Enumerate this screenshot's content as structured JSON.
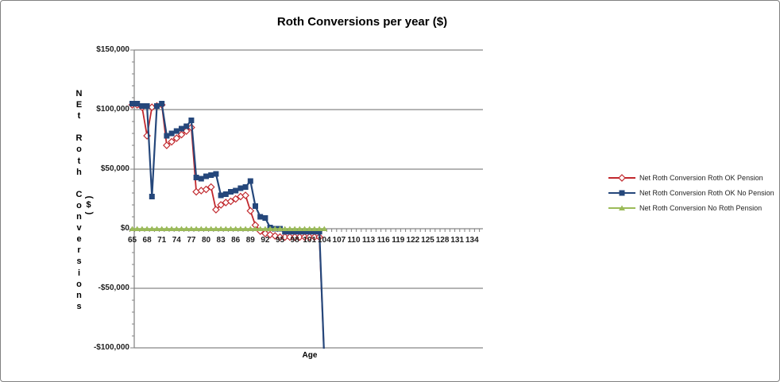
{
  "chart_data": {
    "type": "line",
    "title": "Roth Conversions per year ($)",
    "xlabel": "Age",
    "ylabel": "Net Roth Conversions ($)",
    "ylabel_stacked_text": "NEt Roth Conversions",
    "ylabel_unit": "($)",
    "legend_position": "right",
    "grid": "horizontal-only",
    "ylim": [
      -100000,
      150000
    ],
    "y_ticks": [
      {
        "value": 150000,
        "label": "$150,000"
      },
      {
        "value": 100000,
        "label": "$100,000"
      },
      {
        "value": 50000,
        "label": "$50,000"
      },
      {
        "value": 0,
        "label": "$0"
      },
      {
        "value": -50000,
        "label": "-$50,000"
      },
      {
        "value": -100000,
        "label": "-$100,000"
      }
    ],
    "x_tick_labels": [
      65,
      68,
      71,
      74,
      77,
      80,
      83,
      86,
      89,
      92,
      95,
      98,
      101,
      104,
      107,
      110,
      113,
      116,
      119,
      122,
      125,
      128,
      131,
      134
    ],
    "x_axis_extends_to": 136,
    "x": [
      65,
      66,
      67,
      68,
      69,
      70,
      71,
      72,
      73,
      74,
      75,
      76,
      77,
      78,
      79,
      80,
      81,
      82,
      83,
      84,
      85,
      86,
      87,
      88,
      89,
      90,
      91,
      92,
      93,
      94,
      95,
      96,
      97,
      98,
      99,
      100,
      101,
      102,
      103,
      104
    ],
    "series": [
      {
        "name": "Net Roth Conversion Roth OK Pension",
        "color": "#c1282d",
        "marker": "open-diamond",
        "values": [
          104000,
          104000,
          102000,
          78000,
          102000,
          103000,
          104000,
          70000,
          73000,
          76000,
          79000,
          82000,
          85000,
          31000,
          32000,
          33000,
          35000,
          16000,
          20000,
          22000,
          23000,
          25000,
          27000,
          28000,
          15000,
          3000,
          -2000,
          -4000,
          -5000,
          -6000,
          -7000,
          -7000,
          -7000,
          -7000,
          -7000,
          -7000,
          -7000,
          -7000,
          -7000,
          -110000
        ]
      },
      {
        "name": "Net Roth Conversion Roth OK No Pension",
        "color": "#25477b",
        "marker": "filled-square",
        "values": [
          105000,
          105000,
          103000,
          103000,
          27000,
          103000,
          105000,
          78000,
          80000,
          82000,
          84000,
          86000,
          91000,
          43000,
          42000,
          44000,
          45000,
          46000,
          28000,
          29000,
          31000,
          32000,
          34000,
          35000,
          40000,
          19000,
          10000,
          9000,
          1000,
          0,
          0,
          -2500,
          -2500,
          -2500,
          -2500,
          -2500,
          -2500,
          -2500,
          -2500,
          -110000
        ]
      },
      {
        "name": "Net Roth Conversion No Roth Pension",
        "color": "#9bbb59",
        "marker": "filled-triangle",
        "values": [
          0,
          0,
          0,
          0,
          0,
          0,
          0,
          0,
          0,
          0,
          0,
          0,
          0,
          0,
          0,
          0,
          0,
          0,
          0,
          0,
          0,
          0,
          0,
          0,
          0,
          0,
          0,
          0,
          0,
          0,
          0,
          0,
          0,
          0,
          0,
          0,
          0,
          0,
          0,
          0
        ]
      }
    ],
    "note": "At age 104 the red and blue series drop vertically below the -$100,000 axis minimum and are clipped at the bottom of the plot.",
    "colors": {
      "gridline": "#878787",
      "axis": "#808080",
      "tick_text": "#1f1f1f",
      "frame_border": "#808080"
    }
  }
}
